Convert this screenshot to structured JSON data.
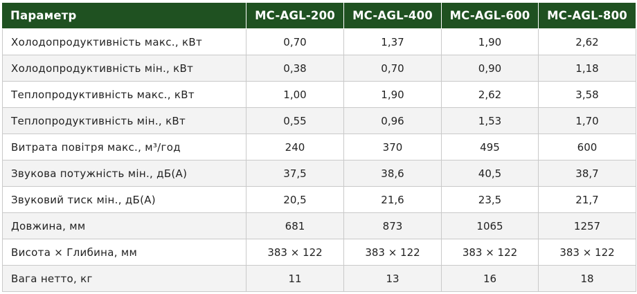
{
  "table": {
    "headers": [
      "Параметр",
      "MC-AGL-200",
      "MC-AGL-400",
      "MC-AGL-600",
      "MC-AGL-800"
    ],
    "rows": [
      {
        "param": "Холодопродуктивність макс., кВт",
        "values": [
          "0,70",
          "1,37",
          "1,90",
          "2,62"
        ]
      },
      {
        "param": "Холодопродуктивність мін., кВт",
        "values": [
          "0,38",
          "0,70",
          "0,90",
          "1,18"
        ]
      },
      {
        "param": "Теплопродуктивність макс., кВт",
        "values": [
          "1,00",
          "1,90",
          "2,62",
          "3,58"
        ]
      },
      {
        "param": "Теплопродуктивність мін., кВт",
        "values": [
          "0,55",
          "0,96",
          "1,53",
          "1,70"
        ]
      },
      {
        "param": "Витрата повітря макс., м³/год",
        "values": [
          "240",
          "370",
          "495",
          "600"
        ]
      },
      {
        "param": "Звукова потужність мін., дБ(А)",
        "values": [
          "37,5",
          "38,6",
          "40,5",
          "38,7"
        ]
      },
      {
        "param": "Звуковий тиск мін., дБ(А)",
        "values": [
          "20,5",
          "21,6",
          "23,5",
          "21,7"
        ]
      },
      {
        "param": "Довжина, мм",
        "values": [
          "681",
          "873",
          "1065",
          "1257"
        ]
      },
      {
        "param": "Висота × Глибина, мм",
        "values": [
          "383 × 122",
          "383 × 122",
          "383 × 122",
          "383 × 122"
        ]
      },
      {
        "param": "Вага нетто, кг",
        "values": [
          "11",
          "13",
          "16",
          "18"
        ]
      }
    ]
  },
  "colors": {
    "header_bg": "#1f5121",
    "header_text": "#ffffff",
    "row_alt": "#f3f3f3",
    "border": "#c9c9c9"
  }
}
